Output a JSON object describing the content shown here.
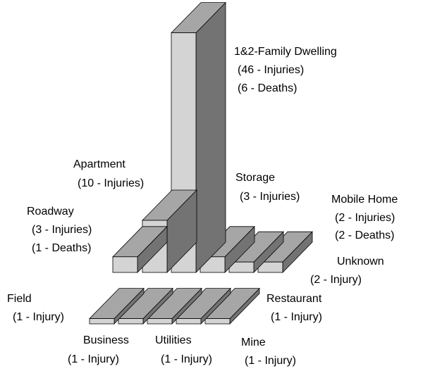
{
  "chart_data": {
    "type": "bar3d",
    "categories": [
      "Roadway",
      "Apartment",
      "1&2-Family Dwelling",
      "Storage",
      "Mobile Home",
      "Unknown",
      "Field",
      "Business",
      "Utilities",
      "Mine",
      "Restaurant"
    ],
    "series": [
      {
        "name": "Injuries",
        "color": "#d4d4d4",
        "values": [
          3,
          10,
          46,
          3,
          2,
          2,
          1,
          1,
          1,
          1,
          1
        ],
        "value_labels": [
          "(3 - Injuries)",
          "(10 - Injuries)",
          "(46 - Injuries)",
          "(3 - Injuries)",
          "(2 - Injuries)",
          "(2 - Injury)",
          "(1 - Injury)",
          "(1 - Injury)",
          "(1 - Injury)",
          "(1 - Injury)",
          "(1 - Injury)"
        ]
      },
      {
        "name": "Deaths",
        "values": [
          1,
          null,
          6,
          null,
          2,
          null,
          null,
          null,
          null,
          null,
          null
        ],
        "value_labels": [
          "(1 - Deaths)",
          null,
          "(6 - Deaths)",
          null,
          "(2 - Deaths)",
          null,
          null,
          null,
          null,
          null,
          null
        ]
      }
    ]
  }
}
